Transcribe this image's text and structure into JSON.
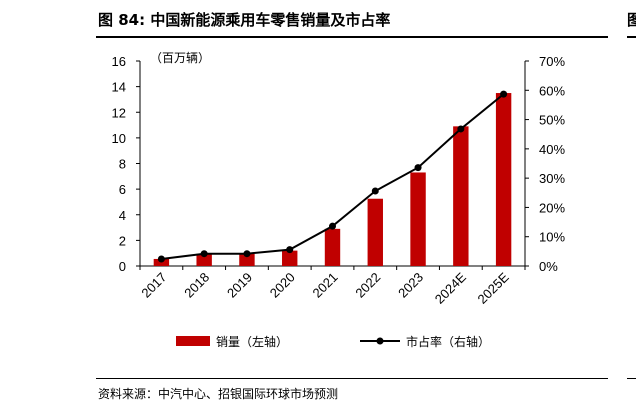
{
  "header": {
    "title": "图 84: 中国新能源乘用车零售销量及市占率",
    "edge_glyph": "图"
  },
  "footer": {
    "source": "资料来源：中汽中心、招银国际环球市场预测"
  },
  "colors": {
    "bar": "#c00000",
    "line": "#000000"
  },
  "chart_data": {
    "type": "bar",
    "categories": [
      "2017",
      "2018",
      "2019",
      "2020",
      "2021",
      "2022",
      "2023",
      "2024E",
      "2025E"
    ],
    "unit_label": "（百万辆）",
    "y_left": {
      "ylim": [
        0,
        16
      ],
      "ticks": [
        "0",
        "2",
        "4",
        "6",
        "8",
        "10",
        "12",
        "14",
        "16"
      ]
    },
    "y_right": {
      "ylim": [
        0,
        70
      ],
      "ticks": [
        "0%",
        "10%",
        "20%",
        "30%",
        "40%",
        "50%",
        "60%",
        "70%"
      ]
    },
    "series": [
      {
        "name": "销量（左轴）",
        "type": "bar",
        "axis": "left",
        "values": [
          0.55,
          0.95,
          0.95,
          1.2,
          2.9,
          5.25,
          7.3,
          10.9,
          13.5
        ]
      },
      {
        "name": "市占率（右轴）",
        "type": "line",
        "axis": "right",
        "values": [
          2.4,
          4.2,
          4.2,
          5.6,
          13.6,
          25.6,
          33.6,
          46.8,
          58.7
        ]
      }
    ],
    "legend_position": "bottom",
    "grid": false
  }
}
